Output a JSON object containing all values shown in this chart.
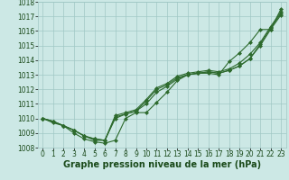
{
  "x": [
    0,
    1,
    2,
    3,
    4,
    5,
    6,
    7,
    8,
    9,
    10,
    11,
    12,
    13,
    14,
    15,
    16,
    17,
    18,
    19,
    20,
    21,
    22,
    23
  ],
  "series": [
    [
      1010.0,
      1009.7,
      1009.5,
      1009.0,
      1008.6,
      1008.4,
      1008.3,
      1008.5,
      1010.0,
      1010.4,
      1010.4,
      1011.1,
      1011.8,
      1012.6,
      1013.0,
      1013.1,
      1013.1,
      1013.0,
      1013.9,
      1014.5,
      1015.2,
      1016.1,
      1016.1,
      1017.5
    ],
    [
      1010.0,
      1009.8,
      1009.5,
      1009.2,
      1008.8,
      1008.5,
      1008.5,
      1010.0,
      1010.3,
      1010.5,
      1011.0,
      1011.8,
      1012.2,
      1012.7,
      1013.0,
      1013.1,
      1013.2,
      1013.1,
      1013.3,
      1013.6,
      1014.1,
      1015.0,
      1016.1,
      1017.1
    ],
    [
      1010.0,
      1009.8,
      1009.5,
      1009.2,
      1008.8,
      1008.6,
      1008.5,
      1010.1,
      1010.3,
      1010.5,
      1011.2,
      1012.0,
      1012.3,
      1012.8,
      1013.0,
      1013.1,
      1013.2,
      1013.1,
      1013.3,
      1013.6,
      1014.1,
      1015.1,
      1016.2,
      1017.2
    ],
    [
      1010.0,
      1009.8,
      1009.5,
      1009.2,
      1008.8,
      1008.6,
      1008.5,
      1010.2,
      1010.4,
      1010.6,
      1011.3,
      1012.1,
      1012.4,
      1012.9,
      1013.1,
      1013.2,
      1013.3,
      1013.2,
      1013.4,
      1013.8,
      1014.4,
      1015.2,
      1016.3,
      1017.3
    ]
  ],
  "line_color": "#2d6a2d",
  "marker": "D",
  "markersize": 2.0,
  "linewidth": 0.8,
  "bg_color": "#cce8e5",
  "grid_color": "#a0c8c4",
  "ylim": [
    1008,
    1018
  ],
  "yticks": [
    1008,
    1009,
    1010,
    1011,
    1012,
    1013,
    1014,
    1015,
    1016,
    1017,
    1018
  ],
  "xlim": [
    -0.5,
    23.5
  ],
  "xlabel": "Graphe pression niveau de la mer (hPa)",
  "xlabel_fontsize": 7,
  "tick_fontsize": 5.5,
  "label_color": "#1a4a1a",
  "figsize": [
    3.2,
    2.0
  ],
  "dpi": 100
}
